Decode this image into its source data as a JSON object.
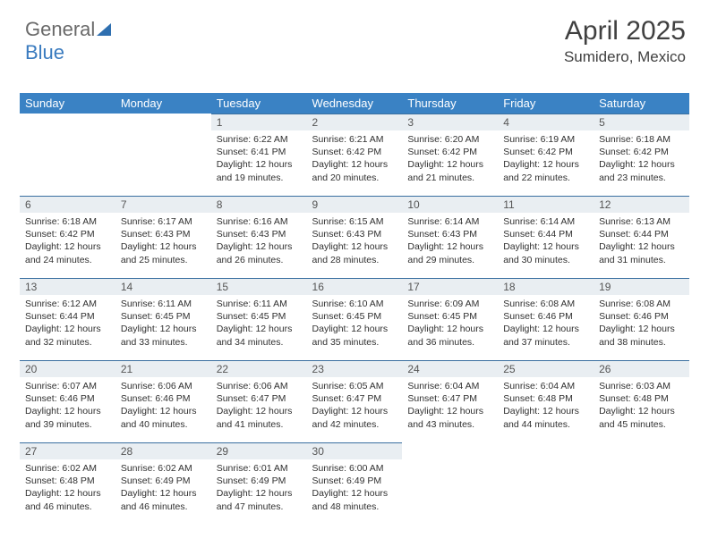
{
  "brand": {
    "left": "General",
    "right": "Blue"
  },
  "title": "April 2025",
  "location": "Sumidero, Mexico",
  "colors": {
    "header_bg": "#3a82c4",
    "header_text": "#ffffff",
    "daynum_bg": "#e9eef2",
    "daynum_border": "#3a6fa0",
    "body_text": "#303030",
    "logo_gray": "#6a6a6a",
    "logo_blue": "#3a7bbf"
  },
  "weekdays": [
    "Sunday",
    "Monday",
    "Tuesday",
    "Wednesday",
    "Thursday",
    "Friday",
    "Saturday"
  ],
  "weeks": [
    [
      {
        "n": "",
        "sr": "",
        "ss": "",
        "dl": "",
        "empty": true
      },
      {
        "n": "",
        "sr": "",
        "ss": "",
        "dl": "",
        "empty": true
      },
      {
        "n": "1",
        "sr": "Sunrise: 6:22 AM",
        "ss": "Sunset: 6:41 PM",
        "dl": "Daylight: 12 hours and 19 minutes."
      },
      {
        "n": "2",
        "sr": "Sunrise: 6:21 AM",
        "ss": "Sunset: 6:42 PM",
        "dl": "Daylight: 12 hours and 20 minutes."
      },
      {
        "n": "3",
        "sr": "Sunrise: 6:20 AM",
        "ss": "Sunset: 6:42 PM",
        "dl": "Daylight: 12 hours and 21 minutes."
      },
      {
        "n": "4",
        "sr": "Sunrise: 6:19 AM",
        "ss": "Sunset: 6:42 PM",
        "dl": "Daylight: 12 hours and 22 minutes."
      },
      {
        "n": "5",
        "sr": "Sunrise: 6:18 AM",
        "ss": "Sunset: 6:42 PM",
        "dl": "Daylight: 12 hours and 23 minutes."
      }
    ],
    [
      {
        "n": "6",
        "sr": "Sunrise: 6:18 AM",
        "ss": "Sunset: 6:42 PM",
        "dl": "Daylight: 12 hours and 24 minutes."
      },
      {
        "n": "7",
        "sr": "Sunrise: 6:17 AM",
        "ss": "Sunset: 6:43 PM",
        "dl": "Daylight: 12 hours and 25 minutes."
      },
      {
        "n": "8",
        "sr": "Sunrise: 6:16 AM",
        "ss": "Sunset: 6:43 PM",
        "dl": "Daylight: 12 hours and 26 minutes."
      },
      {
        "n": "9",
        "sr": "Sunrise: 6:15 AM",
        "ss": "Sunset: 6:43 PM",
        "dl": "Daylight: 12 hours and 28 minutes."
      },
      {
        "n": "10",
        "sr": "Sunrise: 6:14 AM",
        "ss": "Sunset: 6:43 PM",
        "dl": "Daylight: 12 hours and 29 minutes."
      },
      {
        "n": "11",
        "sr": "Sunrise: 6:14 AM",
        "ss": "Sunset: 6:44 PM",
        "dl": "Daylight: 12 hours and 30 minutes."
      },
      {
        "n": "12",
        "sr": "Sunrise: 6:13 AM",
        "ss": "Sunset: 6:44 PM",
        "dl": "Daylight: 12 hours and 31 minutes."
      }
    ],
    [
      {
        "n": "13",
        "sr": "Sunrise: 6:12 AM",
        "ss": "Sunset: 6:44 PM",
        "dl": "Daylight: 12 hours and 32 minutes."
      },
      {
        "n": "14",
        "sr": "Sunrise: 6:11 AM",
        "ss": "Sunset: 6:45 PM",
        "dl": "Daylight: 12 hours and 33 minutes."
      },
      {
        "n": "15",
        "sr": "Sunrise: 6:11 AM",
        "ss": "Sunset: 6:45 PM",
        "dl": "Daylight: 12 hours and 34 minutes."
      },
      {
        "n": "16",
        "sr": "Sunrise: 6:10 AM",
        "ss": "Sunset: 6:45 PM",
        "dl": "Daylight: 12 hours and 35 minutes."
      },
      {
        "n": "17",
        "sr": "Sunrise: 6:09 AM",
        "ss": "Sunset: 6:45 PM",
        "dl": "Daylight: 12 hours and 36 minutes."
      },
      {
        "n": "18",
        "sr": "Sunrise: 6:08 AM",
        "ss": "Sunset: 6:46 PM",
        "dl": "Daylight: 12 hours and 37 minutes."
      },
      {
        "n": "19",
        "sr": "Sunrise: 6:08 AM",
        "ss": "Sunset: 6:46 PM",
        "dl": "Daylight: 12 hours and 38 minutes."
      }
    ],
    [
      {
        "n": "20",
        "sr": "Sunrise: 6:07 AM",
        "ss": "Sunset: 6:46 PM",
        "dl": "Daylight: 12 hours and 39 minutes."
      },
      {
        "n": "21",
        "sr": "Sunrise: 6:06 AM",
        "ss": "Sunset: 6:46 PM",
        "dl": "Daylight: 12 hours and 40 minutes."
      },
      {
        "n": "22",
        "sr": "Sunrise: 6:06 AM",
        "ss": "Sunset: 6:47 PM",
        "dl": "Daylight: 12 hours and 41 minutes."
      },
      {
        "n": "23",
        "sr": "Sunrise: 6:05 AM",
        "ss": "Sunset: 6:47 PM",
        "dl": "Daylight: 12 hours and 42 minutes."
      },
      {
        "n": "24",
        "sr": "Sunrise: 6:04 AM",
        "ss": "Sunset: 6:47 PM",
        "dl": "Daylight: 12 hours and 43 minutes."
      },
      {
        "n": "25",
        "sr": "Sunrise: 6:04 AM",
        "ss": "Sunset: 6:48 PM",
        "dl": "Daylight: 12 hours and 44 minutes."
      },
      {
        "n": "26",
        "sr": "Sunrise: 6:03 AM",
        "ss": "Sunset: 6:48 PM",
        "dl": "Daylight: 12 hours and 45 minutes."
      }
    ],
    [
      {
        "n": "27",
        "sr": "Sunrise: 6:02 AM",
        "ss": "Sunset: 6:48 PM",
        "dl": "Daylight: 12 hours and 46 minutes."
      },
      {
        "n": "28",
        "sr": "Sunrise: 6:02 AM",
        "ss": "Sunset: 6:49 PM",
        "dl": "Daylight: 12 hours and 46 minutes."
      },
      {
        "n": "29",
        "sr": "Sunrise: 6:01 AM",
        "ss": "Sunset: 6:49 PM",
        "dl": "Daylight: 12 hours and 47 minutes."
      },
      {
        "n": "30",
        "sr": "Sunrise: 6:00 AM",
        "ss": "Sunset: 6:49 PM",
        "dl": "Daylight: 12 hours and 48 minutes."
      },
      {
        "n": "",
        "sr": "",
        "ss": "",
        "dl": "",
        "empty": true
      },
      {
        "n": "",
        "sr": "",
        "ss": "",
        "dl": "",
        "empty": true
      },
      {
        "n": "",
        "sr": "",
        "ss": "",
        "dl": "",
        "empty": true
      }
    ]
  ]
}
